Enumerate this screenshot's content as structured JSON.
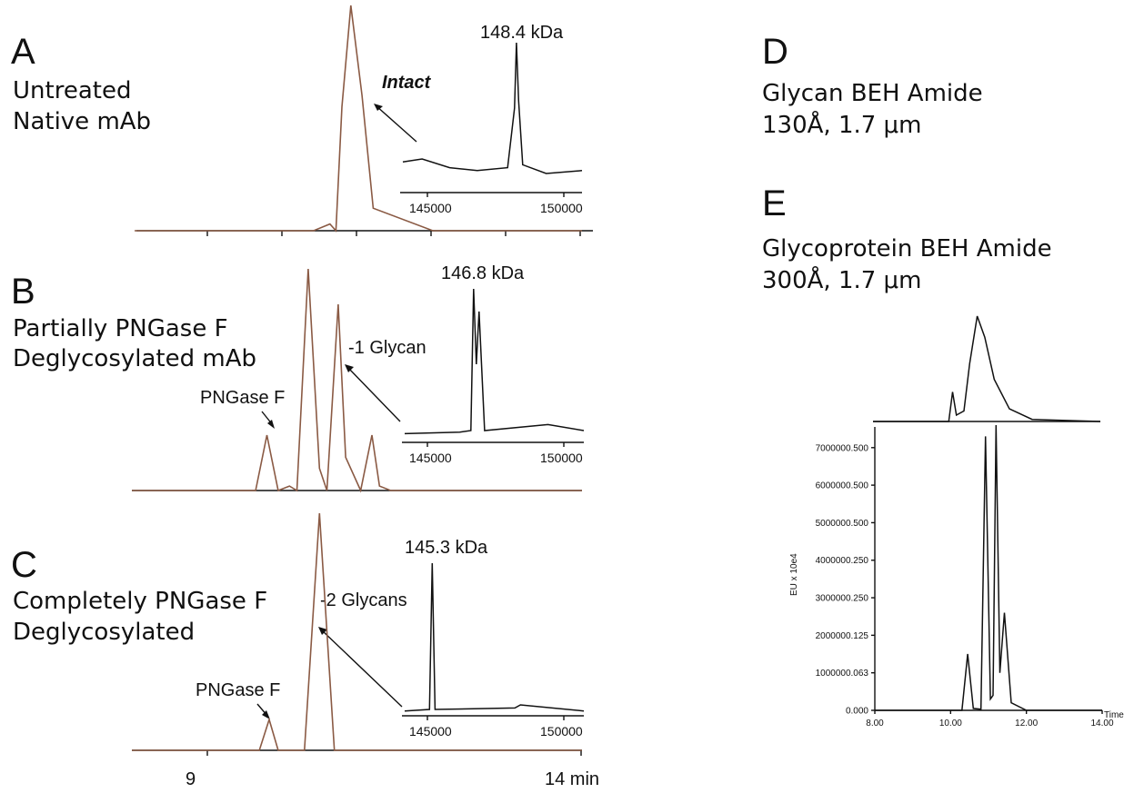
{
  "colors": {
    "chromatogram": "#8a5a44",
    "spectrum": "#111111",
    "background": "#ffffff"
  },
  "panels": {
    "A": {
      "letter": "A",
      "line1": "Untreated",
      "line2": "Native mAb",
      "peak_label": "Intact",
      "mass_label": "148.4 kDa"
    },
    "B": {
      "letter": "B",
      "line1": "Partially PNGase F",
      "line2": "Deglycosylated mAb",
      "peak_label": "-1 Glycan",
      "enzyme_label": "PNGase F",
      "mass_label": "146.8 kDa"
    },
    "C": {
      "letter": "C",
      "line1": "Completely PNGase F",
      "line2": "Deglycosylated",
      "peak_label": "-2 Glycans",
      "enzyme_label": "PNGase F",
      "mass_label": "145.3 kDa"
    },
    "D": {
      "letter": "D",
      "line1": "Glycan BEH Amide",
      "line2": "130Å, 1.7 μm"
    },
    "E": {
      "letter": "E",
      "line1": "Glycoprotein BEH Amide",
      "line2": "300Å, 1.7 μm"
    }
  },
  "left_time_axis": {
    "tick_start": "9",
    "tick_end": "14 min"
  },
  "chart_data": [
    {
      "id": "panel-A-chromatogram",
      "type": "line",
      "series": [
        {
          "x": [
            8.0,
            10.4,
            10.62,
            10.7,
            10.78,
            10.9,
            11.05,
            11.2,
            12.0,
            14.0
          ],
          "values": [
            0,
            0,
            3,
            0,
            55,
            100,
            60,
            10,
            0,
            0
          ]
        }
      ]
    },
    {
      "id": "panel-A-spectrum",
      "type": "line",
      "xlim": [
        144200,
        150800
      ],
      "x_ticks": [
        "145000",
        "150000"
      ],
      "series": [
        {
          "x": [
            144300,
            145000,
            146000,
            147000,
            148100,
            148350,
            148420,
            148500,
            148650,
            149500,
            150800
          ],
          "values": [
            18,
            20,
            14,
            12,
            14,
            55,
            100,
            60,
            16,
            10,
            12
          ]
        }
      ]
    },
    {
      "id": "panel-B-chromatogram",
      "type": "line",
      "series": [
        {
          "x": [
            8.0,
            9.65,
            9.8,
            9.95,
            10.1,
            10.2,
            10.35,
            10.5,
            10.6,
            10.75,
            10.85,
            11.05,
            11.2,
            11.3,
            11.45,
            14.0
          ],
          "values": [
            0,
            0,
            25,
            0,
            2,
            0,
            100,
            10,
            0,
            84,
            15,
            0,
            25,
            2,
            0,
            0
          ]
        }
      ]
    },
    {
      "id": "panel-B-spectrum",
      "type": "line",
      "xlim": [
        144200,
        150800
      ],
      "x_ticks": [
        "145000",
        "150000"
      ],
      "series": [
        {
          "x": [
            144300,
            146300,
            146700,
            146800,
            146900,
            147000,
            147200,
            149500,
            150800
          ],
          "values": [
            4,
            5,
            6,
            100,
            50,
            85,
            6,
            10,
            6
          ]
        }
      ]
    },
    {
      "id": "panel-C-chromatogram",
      "type": "line",
      "series": [
        {
          "x": [
            8.0,
            9.7,
            9.83,
            9.95,
            10.3,
            10.5,
            10.7,
            11.0,
            14.0
          ],
          "values": [
            0,
            0,
            13,
            0,
            0,
            100,
            0,
            0,
            0
          ]
        }
      ]
    },
    {
      "id": "panel-C-spectrum",
      "type": "line",
      "xlim": [
        144200,
        150800
      ],
      "x_ticks": [
        "145000",
        "150000"
      ],
      "series": [
        {
          "x": [
            144300,
            145200,
            145300,
            145400,
            148300,
            148500,
            150800
          ],
          "values": [
            2,
            3,
            100,
            3,
            4,
            6,
            2
          ]
        }
      ]
    },
    {
      "id": "panel-D-chromatogram",
      "type": "line",
      "xlim": [
        8.0,
        14.0
      ],
      "series": [
        {
          "x": [
            8.0,
            10.0,
            10.1,
            10.2,
            10.4,
            10.55,
            10.75,
            10.95,
            11.2,
            11.6,
            12.2,
            14.0
          ],
          "values": [
            0,
            0,
            28,
            6,
            10,
            55,
            100,
            80,
            40,
            12,
            2,
            0
          ]
        }
      ]
    },
    {
      "id": "panel-E-chromatogram",
      "type": "line",
      "xlim": [
        8.0,
        14.0
      ],
      "ylim": [
        0,
        7600000
      ],
      "ylabel": "EU x 10e4",
      "xlabel": "Time",
      "y_ticks": [
        "0.000",
        "1000000.063",
        "2000000.125",
        "3000000.250",
        "4000000.250",
        "5000000.500",
        "6000000.500",
        "7000000.500"
      ],
      "x_ticks": [
        "8.00",
        "10.00",
        "12.00",
        "14.00"
      ],
      "series": [
        {
          "x": [
            8.0,
            10.3,
            10.45,
            10.6,
            10.8,
            10.92,
            11.05,
            11.12,
            11.2,
            11.3,
            11.42,
            11.6,
            12.0,
            14.0
          ],
          "values": [
            0,
            0,
            1500000,
            50000,
            30000,
            7300000,
            300000,
            400000,
            7600000,
            1000000,
            2600000,
            200000,
            0,
            0
          ]
        }
      ]
    }
  ]
}
